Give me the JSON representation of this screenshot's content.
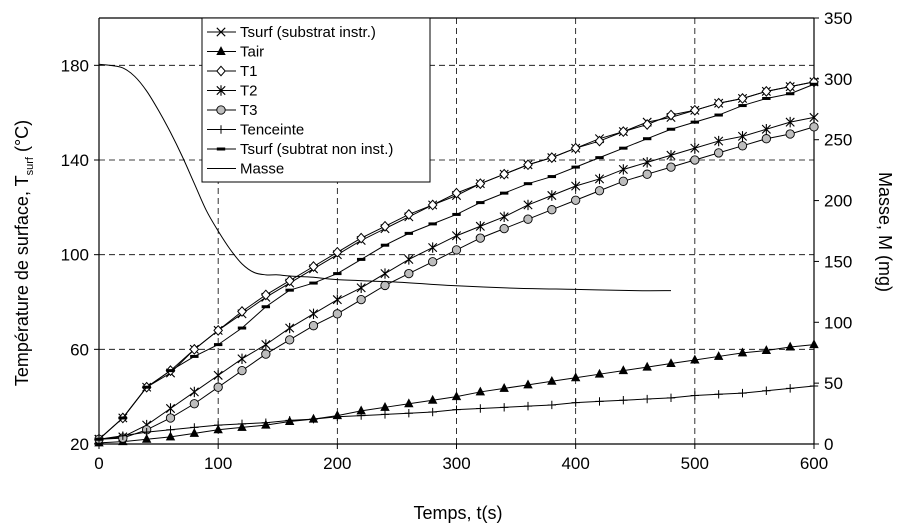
{
  "chart_data": {
    "type": "line",
    "xlabel": "Temps, t(s)",
    "ylabel_left": {
      "main": "Température de surface, T",
      "sub": "surf",
      "unit": " (°C)"
    },
    "ylabel_right": "Masse, M (mg)",
    "xlim": [
      0,
      600
    ],
    "ylim_left": [
      20,
      200
    ],
    "ylim_right": [
      0,
      350
    ],
    "x_ticks": [
      0,
      100,
      200,
      300,
      400,
      500,
      600
    ],
    "y_left_ticks": [
      20,
      60,
      100,
      140,
      180
    ],
    "y_right_ticks": [
      0,
      50,
      100,
      150,
      200,
      250,
      300,
      350
    ],
    "grid": "dashed",
    "legend_position": "top-left",
    "series": [
      {
        "name": "Tsurf (substrat instr.)",
        "marker": "x",
        "axis": "left",
        "x": [
          0,
          20,
          40,
          60,
          80,
          100,
          120,
          140,
          160,
          180,
          200,
          220,
          240,
          260,
          280,
          300,
          320,
          340,
          360,
          380,
          400,
          420,
          440,
          460,
          480,
          500,
          520,
          540,
          560,
          580,
          600
        ],
        "y": [
          22,
          31,
          44,
          50,
          60,
          68,
          75,
          82,
          88,
          94,
          100,
          106,
          111,
          116,
          121,
          125,
          130,
          134,
          138,
          141,
          145,
          149,
          152,
          156,
          158,
          161,
          164,
          166,
          169,
          171,
          173
        ]
      },
      {
        "name": "Tair",
        "marker": "triangle",
        "axis": "left",
        "x": [
          0,
          20,
          40,
          60,
          80,
          100,
          120,
          140,
          160,
          180,
          200,
          220,
          240,
          260,
          280,
          300,
          320,
          340,
          360,
          380,
          400,
          420,
          440,
          460,
          480,
          500,
          520,
          540,
          560,
          580,
          600
        ],
        "y": [
          20.5,
          21,
          22,
          23,
          24.5,
          26,
          27,
          28,
          29.5,
          30.5,
          32,
          34,
          35.5,
          37,
          38.5,
          40,
          42,
          43.5,
          45,
          46.5,
          48,
          49.5,
          51,
          52.5,
          54,
          55.5,
          57,
          58.5,
          59.5,
          61,
          62
        ]
      },
      {
        "name": "T1",
        "marker": "diamond",
        "axis": "left",
        "x": [
          0,
          20,
          40,
          60,
          80,
          100,
          120,
          140,
          160,
          180,
          200,
          220,
          240,
          260,
          280,
          300,
          320,
          340,
          360,
          380,
          400,
          420,
          440,
          460,
          480,
          500,
          520,
          540,
          560,
          580,
          600
        ],
        "y": [
          22,
          31,
          44,
          51,
          60,
          68,
          76,
          83,
          89,
          95,
          101,
          107,
          112,
          117,
          121,
          126,
          130,
          134,
          138,
          141,
          145,
          148,
          152,
          155,
          159,
          161,
          164,
          166,
          169,
          171,
          173
        ]
      },
      {
        "name": "T2",
        "marker": "star",
        "axis": "left",
        "x": [
          0,
          20,
          40,
          60,
          80,
          100,
          120,
          140,
          160,
          180,
          200,
          220,
          240,
          260,
          280,
          300,
          320,
          340,
          360,
          380,
          400,
          420,
          440,
          460,
          480,
          500,
          520,
          540,
          560,
          580,
          600
        ],
        "y": [
          22,
          23,
          28,
          35,
          42,
          49,
          56,
          62,
          69,
          75,
          81,
          86,
          92,
          98,
          103,
          108,
          112,
          116,
          121,
          125,
          129,
          132,
          136,
          139,
          142,
          145,
          148,
          150,
          153,
          156,
          158
        ]
      },
      {
        "name": "T3",
        "marker": "circle",
        "axis": "left",
        "x": [
          0,
          20,
          40,
          60,
          80,
          100,
          120,
          140,
          160,
          180,
          200,
          220,
          240,
          260,
          280,
          300,
          320,
          340,
          360,
          380,
          400,
          420,
          440,
          460,
          480,
          500,
          520,
          540,
          560,
          580,
          600
        ],
        "y": [
          22,
          22.5,
          26,
          31,
          37,
          44,
          51,
          58,
          64,
          70,
          75,
          81,
          87,
          92,
          97,
          102,
          107,
          111,
          115,
          119,
          123,
          127,
          131,
          134,
          137,
          140,
          143,
          146,
          149,
          151,
          154
        ]
      },
      {
        "name": "Tenceinte",
        "marker": "plus",
        "axis": "left",
        "x": [
          0,
          20,
          40,
          60,
          80,
          100,
          120,
          140,
          160,
          180,
          200,
          220,
          240,
          260,
          280,
          300,
          320,
          340,
          360,
          380,
          400,
          420,
          440,
          460,
          480,
          500,
          520,
          540,
          560,
          580,
          600
        ],
        "y": [
          22,
          23.5,
          25,
          26,
          27,
          28,
          28.5,
          29,
          30,
          30.5,
          31.5,
          32,
          32.5,
          33,
          33.5,
          34.5,
          35,
          35.5,
          36,
          36.5,
          37.5,
          38,
          38.5,
          39,
          39.5,
          40.5,
          41,
          41.5,
          42.5,
          43.5,
          44.5
        ]
      },
      {
        "name": "Tsurf (subtrat non inst.)",
        "marker": "dash",
        "axis": "left",
        "x": [
          0,
          20,
          40,
          60,
          80,
          100,
          120,
          140,
          160,
          180,
          200,
          220,
          240,
          260,
          280,
          300,
          320,
          340,
          360,
          380,
          400,
          420,
          440,
          460,
          480,
          500,
          520,
          540,
          560,
          580,
          600
        ],
        "y": [
          22,
          31,
          44,
          51,
          57,
          62,
          69,
          78,
          85,
          88,
          92,
          98,
          104,
          109,
          113,
          117,
          122,
          126,
          130,
          133,
          137,
          141,
          145,
          149,
          153,
          156,
          159,
          163,
          166,
          168,
          172
        ]
      },
      {
        "name": "Masse",
        "marker": "none",
        "axis": "right",
        "x": [
          0,
          10,
          20,
          30,
          40,
          50,
          60,
          70,
          80,
          90,
          100,
          110,
          120,
          130,
          140,
          150,
          160,
          180,
          200,
          250,
          300,
          350,
          400,
          450,
          480
        ],
        "y": [
          312,
          311,
          309,
          302,
          290,
          274,
          256,
          236,
          214,
          192,
          175,
          160,
          148,
          141,
          139,
          139,
          138,
          137,
          135,
          133,
          130,
          128,
          127,
          126,
          126
        ]
      }
    ]
  }
}
